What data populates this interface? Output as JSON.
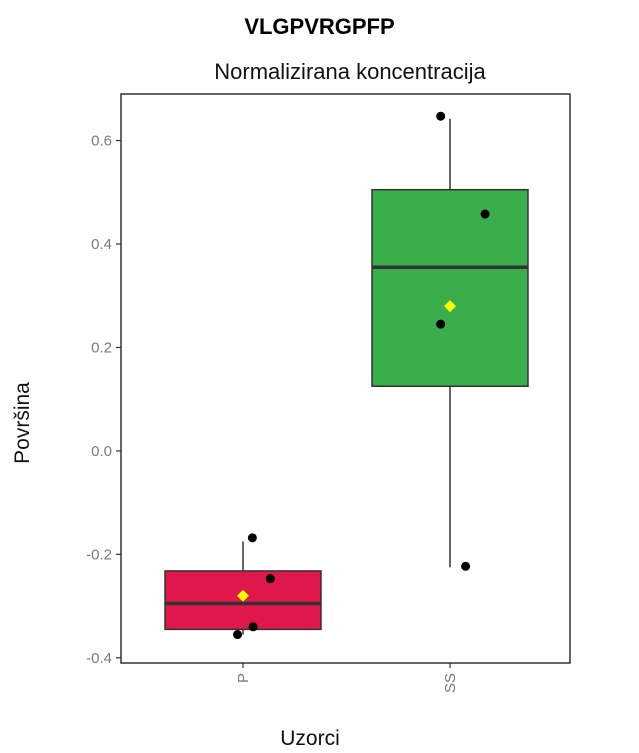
{
  "title": "VLGPVRGPFP",
  "chart_data": {
    "type": "box",
    "subtitle": "Normalizirana koncentracija",
    "xlabel": "Uzorci",
    "ylabel": "Površina",
    "ylim": [
      -0.41,
      0.69
    ],
    "yticks": [
      -0.4,
      -0.2,
      0.0,
      0.2,
      0.4,
      0.6
    ],
    "ytick_labels": [
      "-0.4",
      "-0.2",
      "0.0",
      "0.2",
      "0.4",
      "0.6"
    ],
    "categories": [
      "P",
      "SS"
    ],
    "colors": {
      "P": "#e0174a",
      "SS": "#3aae4a",
      "mean": "#ffff00",
      "point": "#000000"
    },
    "boxes": [
      {
        "category": "P",
        "whisker_low": -0.355,
        "q1": -0.345,
        "median": -0.295,
        "q3": -0.232,
        "whisker_high": -0.175,
        "mean": -0.28,
        "points": [
          [
            -0.07,
            -0.355
          ],
          [
            0.13,
            -0.34
          ],
          [
            0.12,
            -0.168
          ],
          [
            0.35,
            -0.247
          ]
        ]
      },
      {
        "category": "SS",
        "whisker_low": -0.225,
        "q1": 0.125,
        "median": 0.355,
        "q3": 0.505,
        "whisker_high": 0.642,
        "mean": 0.28,
        "points": [
          [
            -0.12,
            0.647
          ],
          [
            0.45,
            0.458
          ],
          [
            -0.12,
            0.245
          ],
          [
            0.2,
            -0.223
          ]
        ]
      }
    ]
  }
}
